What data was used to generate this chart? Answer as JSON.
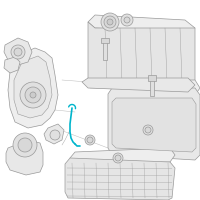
{
  "background": "#ffffff",
  "fig_width": 2.0,
  "fig_height": 2.0,
  "dpi": 100,
  "line_color": "#999999",
  "line_lw": 0.5,
  "fill_color": "#f0f0f0",
  "fill_color2": "#e8e8e8",
  "dipstick_color": "#00b5cc",
  "dipstick_lw": 1.2
}
